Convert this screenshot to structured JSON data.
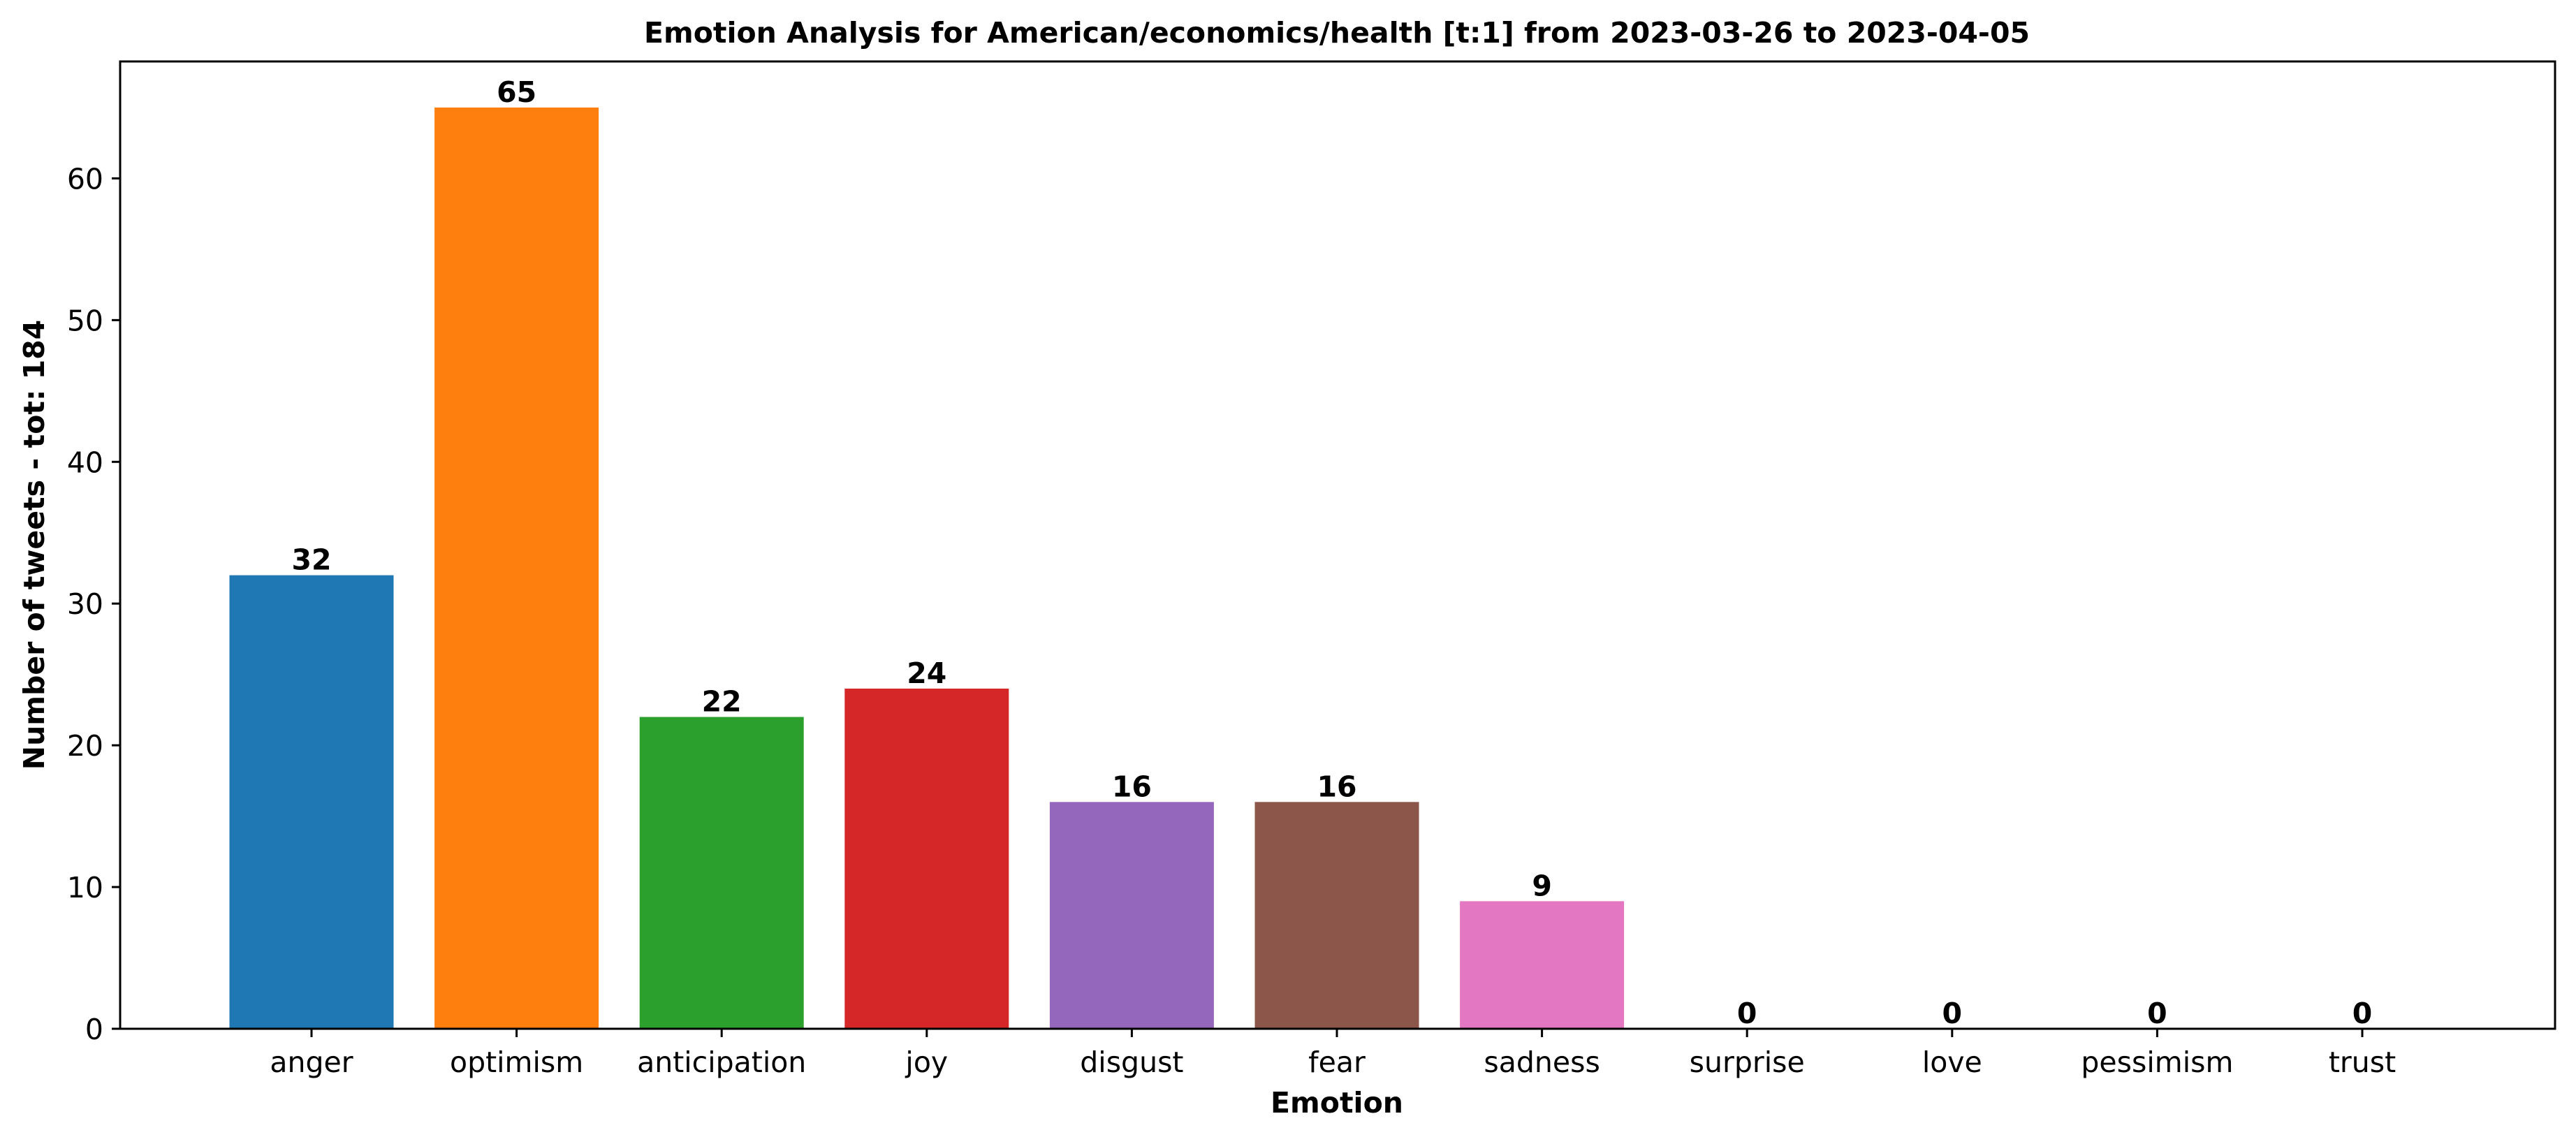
{
  "chart_data": {
    "type": "bar",
    "title": "Emotion Analysis for American/economics/health [t:1] from 2023-03-26 to 2023-04-05",
    "xlabel": "Emotion",
    "ylabel": "Number of tweets - tot: 184",
    "categories": [
      "anger",
      "optimism",
      "anticipation",
      "joy",
      "disgust",
      "fear",
      "sadness",
      "surprise",
      "love",
      "pessimism",
      "trust"
    ],
    "values": [
      32,
      65,
      22,
      24,
      16,
      16,
      9,
      0,
      0,
      0,
      0
    ],
    "colors": [
      "#1f77b4",
      "#ff7f0e",
      "#2ca02c",
      "#d62728",
      "#9467bd",
      "#8c564b",
      "#e377c2",
      "#7f7f7f",
      "#bcbd22",
      "#17becf",
      "#1f77b4"
    ],
    "yticks": [
      0,
      10,
      20,
      30,
      40,
      50,
      60
    ],
    "ylim": [
      0,
      68.25
    ],
    "grid": false,
    "legend": "none"
  }
}
